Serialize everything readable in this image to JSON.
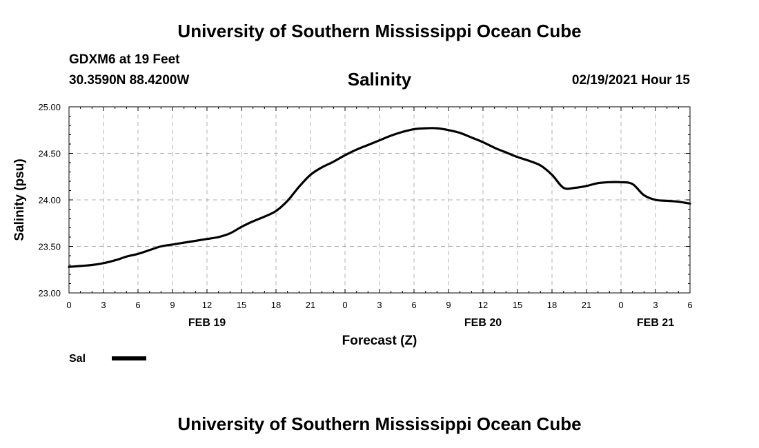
{
  "header": {
    "top_title": "University of Southern Mississippi Ocean Cube",
    "bottom_title": "University of Southern Mississippi Ocean Cube",
    "station": "GDXM6 at 19 Feet",
    "coords": "30.3590N 88.4200W",
    "variable": "Salinity",
    "timestamp": "02/19/2021 Hour 15"
  },
  "chart_data": {
    "type": "line",
    "title": "Salinity",
    "xlabel": "Forecast (Z)",
    "ylabel": "Salinity (psu)",
    "xlim": [
      0,
      54
    ],
    "ylim": [
      23.0,
      25.0
    ],
    "x_ticks": [
      0,
      3,
      6,
      9,
      12,
      15,
      18,
      21,
      24,
      27,
      30,
      33,
      36,
      39,
      42,
      45,
      48,
      51,
      54
    ],
    "x_tick_labels": [
      "0",
      "3",
      "6",
      "9",
      "12",
      "15",
      "18",
      "21",
      "0",
      "3",
      "6",
      "9",
      "12",
      "15",
      "18",
      "21",
      "0",
      "3",
      "6"
    ],
    "y_ticks": [
      23.0,
      23.5,
      24.0,
      24.5,
      25.0
    ],
    "y_tick_labels": [
      "23.00",
      "23.50",
      "24.00",
      "24.50",
      "25.00"
    ],
    "date_labels": [
      {
        "label": "FEB 19",
        "x": 12
      },
      {
        "label": "FEB 20",
        "x": 36
      },
      {
        "label": "FEB 21",
        "x": 51
      }
    ],
    "grid": true,
    "line_color": "#000000",
    "grid_color": "#b0b0b0",
    "legend": "bottom-left",
    "series": [
      {
        "name": "Sal",
        "x": [
          0,
          1,
          2,
          3,
          4,
          5,
          6,
          7,
          8,
          9,
          10,
          11,
          12,
          13,
          14,
          15,
          16,
          17,
          18,
          19,
          20,
          21,
          22,
          23,
          24,
          25,
          26,
          27,
          28,
          29,
          30,
          31,
          32,
          33,
          34,
          35,
          36,
          37,
          38,
          39,
          40,
          41,
          42,
          43,
          44,
          45,
          46,
          47,
          48,
          49,
          50,
          51,
          52,
          53,
          54
        ],
        "values": [
          23.28,
          23.29,
          23.3,
          23.32,
          23.35,
          23.39,
          23.42,
          23.46,
          23.5,
          23.52,
          23.54,
          23.56,
          23.58,
          23.6,
          23.64,
          23.71,
          23.77,
          23.82,
          23.88,
          23.99,
          24.14,
          24.27,
          24.35,
          24.41,
          24.48,
          24.54,
          24.59,
          24.64,
          24.69,
          24.73,
          24.76,
          24.77,
          24.77,
          24.75,
          24.72,
          24.67,
          24.62,
          24.56,
          24.51,
          24.46,
          24.42,
          24.37,
          24.27,
          24.13,
          24.13,
          24.15,
          24.18,
          24.19,
          24.19,
          24.17,
          24.05,
          24.0,
          23.99,
          23.98,
          23.96
        ]
      }
    ]
  }
}
